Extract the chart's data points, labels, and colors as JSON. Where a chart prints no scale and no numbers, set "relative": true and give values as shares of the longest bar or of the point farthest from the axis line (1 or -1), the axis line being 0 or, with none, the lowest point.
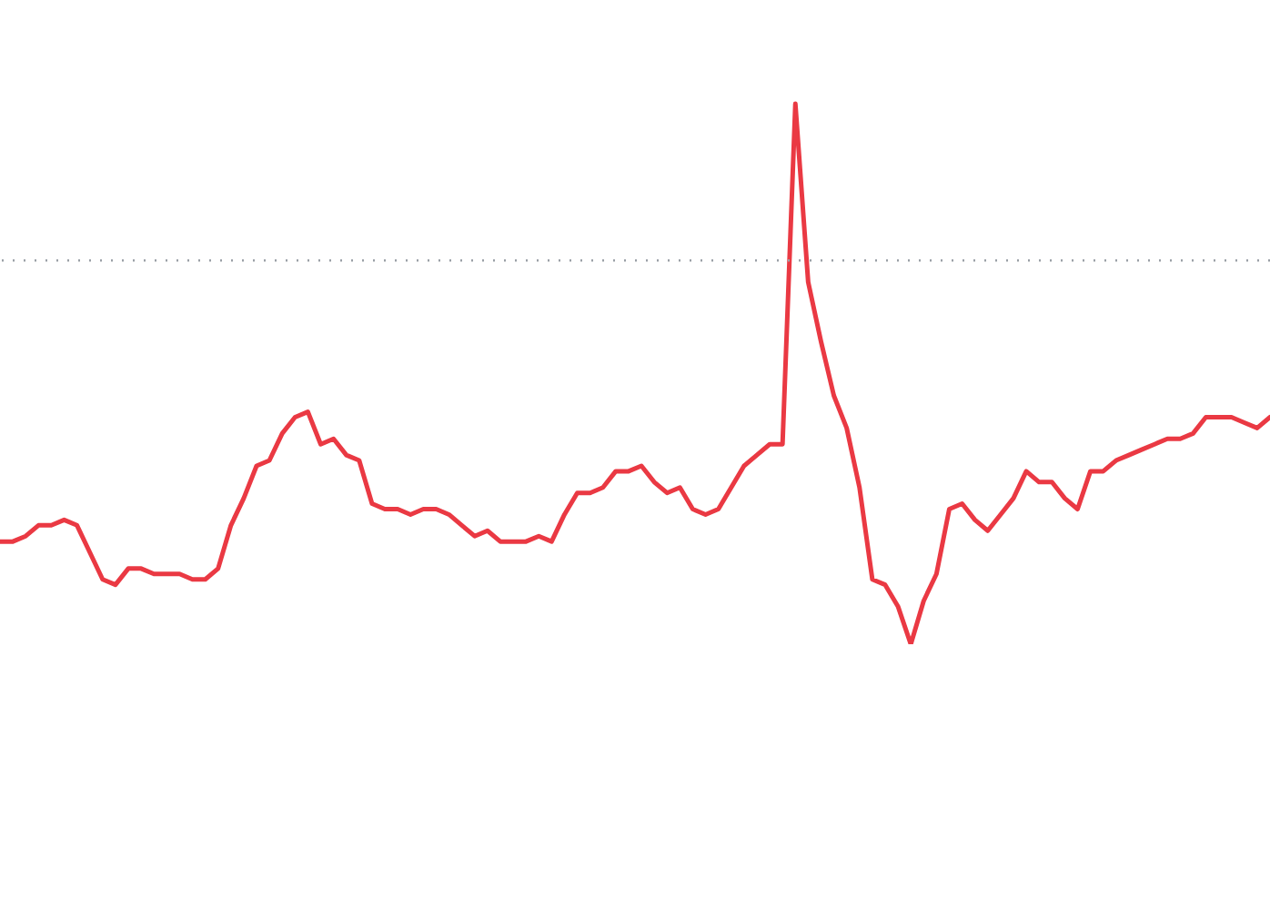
{
  "chart_data": {
    "type": "line",
    "relative": true,
    "line_style": "solid",
    "categories": [
      null,
      null,
      null,
      null,
      null,
      null,
      null,
      null,
      null,
      null,
      null,
      null,
      null,
      null,
      null,
      null,
      null,
      null,
      null,
      null,
      null,
      null,
      null,
      null,
      null,
      null,
      null,
      null,
      null,
      null,
      null,
      null,
      null,
      null,
      null,
      null,
      null,
      null,
      null,
      null,
      null,
      null,
      null,
      null,
      null,
      null,
      null,
      null,
      null,
      null,
      null,
      null,
      null,
      null,
      null,
      null,
      null,
      null,
      null,
      null,
      null,
      null,
      null,
      null,
      null,
      null,
      null,
      null,
      null,
      null,
      null,
      null,
      null,
      null,
      null,
      null,
      null,
      null,
      null,
      null,
      null,
      null,
      null,
      null,
      null,
      null,
      null,
      null,
      null,
      null,
      null,
      null,
      null,
      null,
      null,
      null,
      null,
      null,
      null,
      null
    ],
    "ref_lines": [
      {
        "axis": "y",
        "value": 0.71,
        "color": "#9aa0a6",
        "line_style": "dotted"
      }
    ],
    "series": [
      {
        "color": "#ea3943",
        "values": [
          0.19,
          0.19,
          0.2,
          0.22,
          0.22,
          0.23,
          0.22,
          0.17,
          0.12,
          0.11,
          0.14,
          0.14,
          0.13,
          0.13,
          0.13,
          0.12,
          0.12,
          0.14,
          0.22,
          0.27,
          0.33,
          0.34,
          0.39,
          0.42,
          0.43,
          0.37,
          0.38,
          0.35,
          0.34,
          0.26,
          0.25,
          0.25,
          0.24,
          0.25,
          0.25,
          0.24,
          0.22,
          0.2,
          0.21,
          0.19,
          0.19,
          0.19,
          0.2,
          0.19,
          0.24,
          0.28,
          0.28,
          0.29,
          0.32,
          0.32,
          0.33,
          0.3,
          0.28,
          0.29,
          0.25,
          0.24,
          0.25,
          0.29,
          0.33,
          0.35,
          0.37,
          0.37,
          1,
          0.67,
          0.56,
          0.46,
          0.4,
          0.29,
          0.12,
          0.11,
          0.07,
          0,
          0.08,
          0.13,
          0.25,
          0.26,
          0.23,
          0.21,
          0.24,
          0.27,
          0.32,
          0.3,
          0.3,
          0.27,
          0.25,
          0.32,
          0.32,
          0.34,
          0.35,
          0.36,
          0.37,
          0.38,
          0.38,
          0.39,
          0.42,
          0.42,
          0.42,
          0.41,
          0.4,
          0.42
        ]
      }
    ]
  }
}
